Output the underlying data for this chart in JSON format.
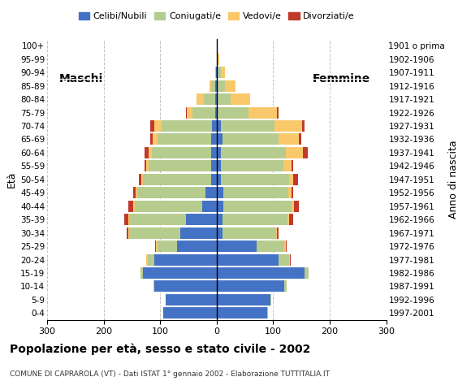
{
  "age_groups": [
    "0-4",
    "5-9",
    "10-14",
    "15-19",
    "20-24",
    "25-29",
    "30-34",
    "35-39",
    "40-44",
    "45-49",
    "50-54",
    "55-59",
    "60-64",
    "65-69",
    "70-74",
    "75-79",
    "80-84",
    "85-89",
    "90-94",
    "95-99",
    "100+"
  ],
  "birth_years": [
    "1997-2001",
    "1992-1996",
    "1987-1991",
    "1982-1986",
    "1977-1981",
    "1972-1976",
    "1967-1971",
    "1962-1966",
    "1957-1961",
    "1952-1956",
    "1947-1951",
    "1942-1946",
    "1937-1941",
    "1932-1936",
    "1927-1931",
    "1922-1926",
    "1917-1921",
    "1912-1916",
    "1907-1911",
    "1902-1906",
    "1901 o prima"
  ],
  "males": {
    "celibi": [
      95,
      90,
      110,
      130,
      110,
      70,
      65,
      55,
      25,
      20,
      10,
      10,
      10,
      10,
      8,
      3,
      3,
      2,
      1,
      0,
      0
    ],
    "coniugati": [
      0,
      0,
      2,
      5,
      12,
      35,
      90,
      100,
      120,
      120,
      120,
      110,
      105,
      95,
      90,
      40,
      20,
      8,
      2,
      0,
      0
    ],
    "vedovi": [
      0,
      0,
      0,
      0,
      2,
      2,
      2,
      2,
      3,
      3,
      3,
      4,
      6,
      8,
      12,
      10,
      12,
      3,
      0,
      0,
      0
    ],
    "divorziati": [
      0,
      0,
      0,
      0,
      1,
      2,
      2,
      7,
      8,
      5,
      5,
      4,
      6,
      4,
      8,
      2,
      0,
      0,
      0,
      0,
      0
    ]
  },
  "females": {
    "celibi": [
      90,
      95,
      120,
      155,
      110,
      70,
      10,
      10,
      12,
      12,
      8,
      8,
      8,
      10,
      8,
      2,
      2,
      2,
      2,
      1,
      0
    ],
    "coniugati": [
      1,
      2,
      4,
      8,
      18,
      50,
      95,
      115,
      120,
      115,
      120,
      110,
      115,
      100,
      95,
      55,
      22,
      12,
      5,
      1,
      0
    ],
    "vedovi": [
      0,
      0,
      0,
      0,
      2,
      2,
      2,
      3,
      5,
      5,
      8,
      15,
      30,
      35,
      48,
      50,
      35,
      20,
      8,
      2,
      0
    ],
    "divorziati": [
      0,
      0,
      0,
      0,
      1,
      2,
      3,
      8,
      8,
      3,
      8,
      3,
      8,
      5,
      5,
      2,
      0,
      0,
      0,
      0,
      0
    ]
  },
  "colors": {
    "celibi": "#4472C4",
    "coniugati": "#B5CC8E",
    "vedovi": "#F9C86A",
    "divorziati": "#C0392B"
  },
  "xlim": 300,
  "title": "Popolazione per età, sesso e stato civile - 2002",
  "subtitle": "COMUNE DI CAPRAROLA (VT) - Dati ISTAT 1° gennaio 2002 - Elaborazione TUTTITALIA.IT",
  "ylabel_left": "Età",
  "ylabel_right": "Anno di nascita",
  "label_maschi": "Maschi",
  "label_femmine": "Femmine",
  "legend_labels": [
    "Celibi/Nubili",
    "Coniugati/e",
    "Vedovi/e",
    "Divorziati/e"
  ]
}
